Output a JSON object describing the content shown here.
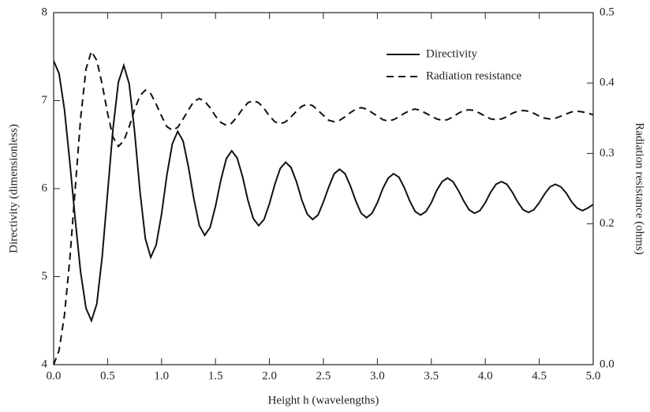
{
  "chart_data": {
    "type": "line",
    "xlabel": "Height h (wavelengths)",
    "ylabel": "Directivity (dimensionless)",
    "y2label": "Radiation resistance (ohms)",
    "legend": "upper right",
    "xlim": [
      0,
      5
    ],
    "ylim": [
      4,
      8
    ],
    "y2lim": [
      0,
      0.5
    ],
    "xticks": [
      {
        "value": 0,
        "label": "0.0"
      },
      {
        "value": 0.5,
        "label": "0.5"
      },
      {
        "value": 1,
        "label": "1.0"
      },
      {
        "value": 1.5,
        "label": "1.5"
      },
      {
        "value": 2,
        "label": "2.0"
      },
      {
        "value": 2.5,
        "label": "2.5"
      },
      {
        "value": 3,
        "label": "3.0"
      },
      {
        "value": 3.5,
        "label": "3.5"
      },
      {
        "value": 4,
        "label": "4.0"
      },
      {
        "value": 4.5,
        "label": "4.5"
      },
      {
        "value": 5,
        "label": "5.0"
      }
    ],
    "yticks": [
      4,
      5,
      6,
      7,
      8
    ],
    "y2ticks": [
      {
        "value": 0,
        "label": "0.0"
      },
      0.2,
      0.3,
      0.4,
      0.5
    ],
    "x": [
      0,
      0.05,
      0.1,
      0.15,
      0.2,
      0.25,
      0.3,
      0.35,
      0.4,
      0.45,
      0.5,
      0.55,
      0.6,
      0.65,
      0.7,
      0.75,
      0.8,
      0.85,
      0.9,
      0.95,
      1,
      1.05,
      1.1,
      1.15,
      1.2,
      1.25,
      1.3,
      1.35,
      1.4,
      1.45,
      1.5,
      1.55,
      1.6,
      1.65,
      1.7,
      1.75,
      1.8,
      1.85,
      1.9,
      1.95,
      2,
      2.05,
      2.1,
      2.15,
      2.2,
      2.25,
      2.3,
      2.35,
      2.4,
      2.45,
      2.5,
      2.55,
      2.6,
      2.65,
      2.7,
      2.75,
      2.8,
      2.85,
      2.9,
      2.95,
      3,
      3.05,
      3.1,
      3.15,
      3.2,
      3.25,
      3.3,
      3.35,
      3.4,
      3.45,
      3.5,
      3.55,
      3.6,
      3.65,
      3.7,
      3.75,
      3.8,
      3.85,
      3.9,
      3.95,
      4,
      4.05,
      4.1,
      4.15,
      4.2,
      4.25,
      4.3,
      4.35,
      4.4,
      4.45,
      4.5,
      4.55,
      4.6,
      4.65,
      4.7,
      4.75,
      4.8,
      4.85,
      4.9,
      4.95,
      5
    ],
    "series": [
      {
        "name": "Directivity",
        "color": "#111111",
        "dash": "solid",
        "values": [
          7.45,
          7.31,
          6.9,
          6.3,
          5.65,
          5.05,
          4.64,
          4.5,
          4.69,
          5.23,
          5.95,
          6.68,
          7.21,
          7.4,
          7.19,
          6.65,
          5.97,
          5.43,
          5.22,
          5.36,
          5.71,
          6.16,
          6.51,
          6.65,
          6.54,
          6.24,
          5.88,
          5.58,
          5.47,
          5.56,
          5.8,
          6.1,
          6.34,
          6.43,
          6.35,
          6.14,
          5.87,
          5.66,
          5.58,
          5.65,
          5.83,
          6.05,
          6.23,
          6.3,
          6.24,
          6.08,
          5.87,
          5.71,
          5.65,
          5.7,
          5.85,
          6.02,
          6.17,
          6.22,
          6.17,
          6.03,
          5.86,
          5.72,
          5.67,
          5.72,
          5.84,
          6.0,
          6.12,
          6.17,
          6.13,
          6.01,
          5.86,
          5.74,
          5.7,
          5.74,
          5.84,
          5.98,
          6.08,
          6.12,
          6.08,
          5.98,
          5.86,
          5.76,
          5.72,
          5.75,
          5.84,
          5.96,
          6.05,
          6.08,
          6.05,
          5.96,
          5.85,
          5.76,
          5.73,
          5.76,
          5.84,
          5.94,
          6.02,
          6.05,
          6.02,
          5.95,
          5.85,
          5.78,
          5.75,
          5.78,
          5.82
        ]
      },
      {
        "name": "Radiation resistance",
        "color": "#111111",
        "dash": "dashed",
        "axis": "y2",
        "values": [
          0,
          0.02,
          0.07,
          0.15,
          0.25,
          0.35,
          0.42,
          0.445,
          0.432,
          0.398,
          0.357,
          0.323,
          0.31,
          0.318,
          0.338,
          0.362,
          0.382,
          0.39,
          0.385,
          0.37,
          0.353,
          0.338,
          0.333,
          0.337,
          0.349,
          0.362,
          0.374,
          0.378,
          0.374,
          0.365,
          0.353,
          0.344,
          0.34,
          0.343,
          0.352,
          0.363,
          0.372,
          0.375,
          0.372,
          0.364,
          0.353,
          0.345,
          0.342,
          0.345,
          0.352,
          0.36,
          0.367,
          0.37,
          0.368,
          0.361,
          0.354,
          0.347,
          0.345,
          0.347,
          0.352,
          0.358,
          0.363,
          0.365,
          0.363,
          0.358,
          0.353,
          0.348,
          0.346,
          0.348,
          0.352,
          0.357,
          0.361,
          0.363,
          0.361,
          0.357,
          0.353,
          0.349,
          0.347,
          0.348,
          0.352,
          0.357,
          0.361,
          0.362,
          0.361,
          0.357,
          0.353,
          0.349,
          0.348,
          0.349,
          0.352,
          0.357,
          0.36,
          0.361,
          0.36,
          0.357,
          0.353,
          0.35,
          0.349,
          0.35,
          0.353,
          0.356,
          0.359,
          0.36,
          0.359,
          0.357,
          0.355
        ]
      }
    ]
  }
}
